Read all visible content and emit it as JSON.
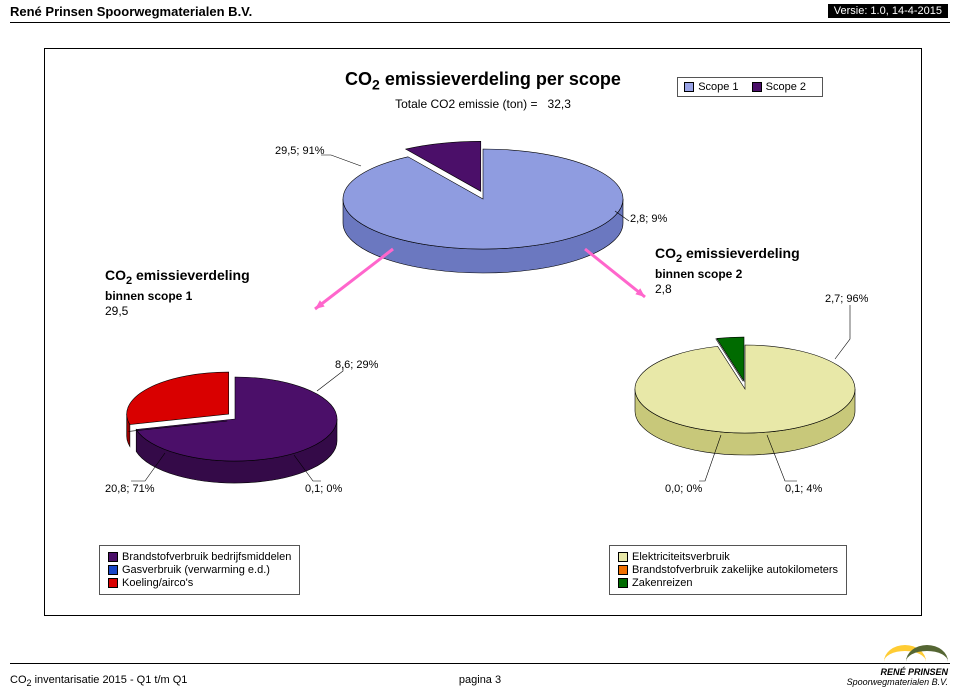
{
  "header": {
    "company": "René Prinsen Spoorwegmaterialen B.V.",
    "version": "Versie: 1.0, 14-4-2015"
  },
  "main": {
    "title_prefix": "CO",
    "title_sub": "2",
    "title_rest": " emissieverdeling per scope",
    "subtitle_label": "Totale CO2 emissie (ton) = ",
    "subtitle_value": "32,3",
    "legend": {
      "scope1_label": "Scope 1",
      "scope2_label": "Scope 2",
      "scope1_color": "#99a3e6",
      "scope2_color": "#4b0f69"
    },
    "total_pie": {
      "label_scope1": "29,5; 91%",
      "label_scope2": "2,8; 9%",
      "pct_scope1": 91,
      "pct_scope2": 9,
      "color1": "#8f9ce0",
      "color1_side": "#6b78c0",
      "color2": "#4b0f69",
      "color2_side": "#340a48"
    }
  },
  "scope1": {
    "title_prefix": "CO",
    "title_sub": "2",
    "title_rest": " emissieverdeling",
    "line2": "binnen scope 1",
    "value": "29,5",
    "labels": {
      "a": "20,8; 71%",
      "b": "0,1; 0%",
      "c": "8,6; 29%"
    },
    "slices": {
      "a_pct": 71,
      "a_color": "#4b0f69",
      "a_side": "#340a48",
      "b_pct": 0,
      "b_color": "#1846c8",
      "c_pct": 29,
      "c_color": "#d90000",
      "c_side": "#990000"
    },
    "legend": {
      "a": "Brandstofverbruik bedrijfsmiddelen",
      "b": "Gasverbruik (verwarming e.d.)",
      "c": "Koeling/airco's"
    }
  },
  "scope2": {
    "title_prefix": "CO",
    "title_sub": "2",
    "title_rest": " emissieverdeling",
    "line2": "binnen scope 2",
    "value": "2,8",
    "labels": {
      "a": "2,7; 96%",
      "b": "0,0; 0%",
      "c": "0,1; 4%"
    },
    "slices": {
      "a_pct": 96,
      "a_color": "#e8e8a8",
      "a_side": "#c8c87a",
      "b_pct": 0,
      "b_color": "#f07000",
      "c_pct": 4,
      "c_color": "#006b00",
      "c_side": "#004800"
    },
    "legend": {
      "a": "Elektriciteitsverbruik",
      "b": "Brandstofverbruik zakelijke autokilometers",
      "c": "Zakenreizen"
    }
  },
  "arrows": {
    "color": "#ff66cc"
  },
  "footer": {
    "left_prefix": "CO",
    "left_sub": "2",
    "left_rest": " inventarisatie 2015 - Q1 t/m Q1",
    "center": "pagina 3",
    "logo_name": "RENÉ PRINSEN",
    "logo_sub": "Spoorwegmaterialen B.V.",
    "arc1_color": "#ffcc33",
    "arc2_color": "#556633"
  }
}
